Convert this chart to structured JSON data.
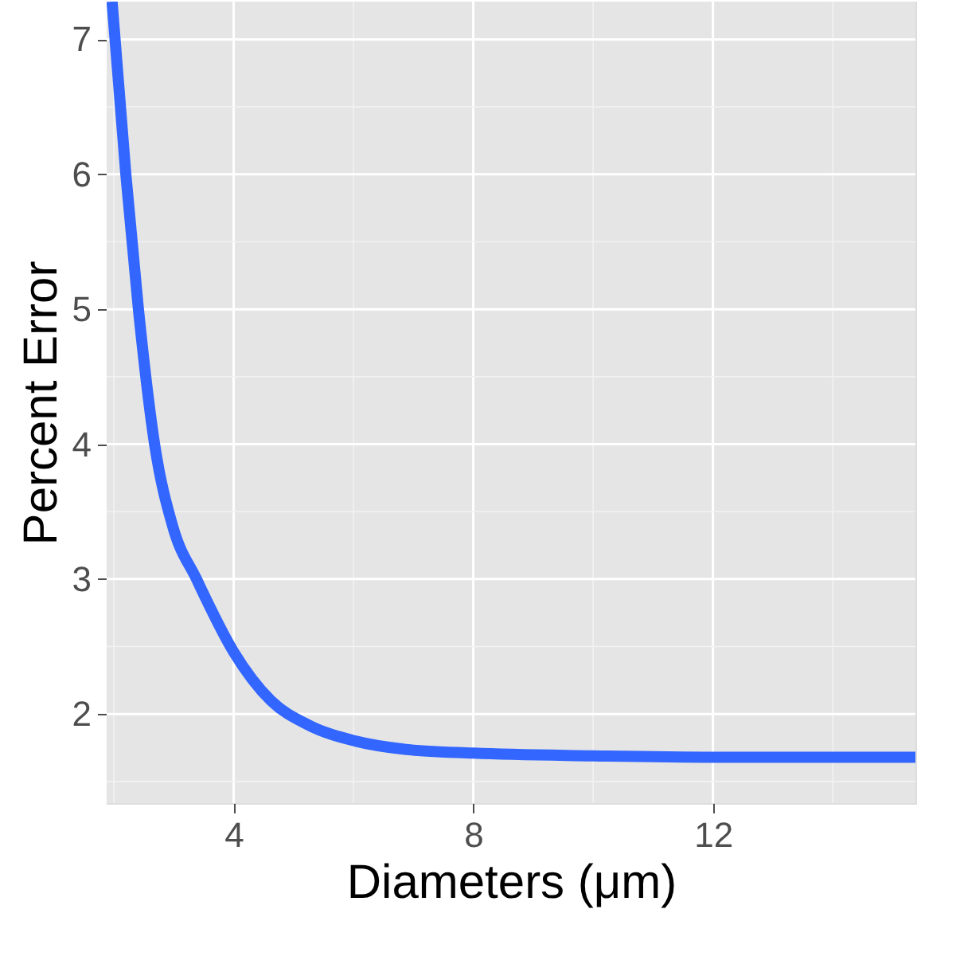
{
  "chart_data": {
    "type": "line",
    "xlabel": "Diameters (μm)",
    "ylabel": "Percent Error",
    "x": [
      1.97,
      2.2,
      2.41,
      2.68,
      2.99,
      3.38,
      4,
      4.62,
      5.24,
      6.03,
      6.83,
      8,
      10,
      12,
      15.38
    ],
    "series": [
      {
        "color": "#3366ff",
        "values": [
          7.28,
          6,
          5,
          4,
          3.38,
          3,
          2.46,
          2.1,
          1.92,
          1.8,
          1.74,
          1.71,
          1.69,
          1.68,
          1.68
        ]
      }
    ],
    "xlim": [
      1.88,
      15.38
    ],
    "xticks": [
      4,
      8,
      12
    ],
    "ylim": [
      1.34,
      7.28
    ],
    "yticks": [
      2,
      3,
      4,
      5,
      6,
      7
    ],
    "grid": true,
    "marker": "none",
    "line_style": "solid"
  }
}
